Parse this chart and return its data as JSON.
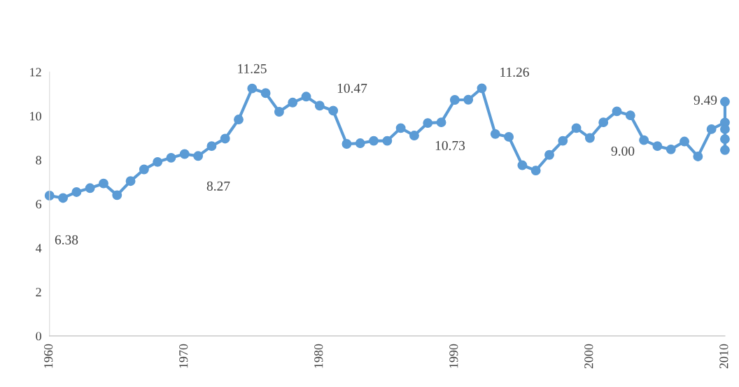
{
  "chart_data": {
    "type": "line",
    "x": [
      1960,
      1961,
      1962,
      1963,
      1964,
      1965,
      1966,
      1967,
      1968,
      1969,
      1970,
      1971,
      1972,
      1973,
      1974,
      1975,
      1976,
      1977,
      1978,
      1979,
      1980,
      1981,
      1982,
      1983,
      1984,
      1985,
      1986,
      1987,
      1988,
      1989,
      1990,
      1991,
      1992,
      1993,
      1994,
      1995,
      1996,
      1997,
      1998,
      1999,
      2000,
      2001,
      2002,
      2003,
      2004,
      2005,
      2006,
      2007,
      2008,
      2009,
      2010,
      2010,
      2010,
      2010,
      2010
    ],
    "series": [
      {
        "color": "#5b9bd5",
        "values": [
          6.38,
          6.27,
          6.54,
          6.72,
          6.93,
          6.4,
          7.04,
          7.57,
          7.91,
          8.1,
          8.27,
          8.18,
          8.63,
          8.97,
          9.84,
          11.25,
          11.04,
          10.19,
          10.61,
          10.88,
          10.47,
          10.24,
          8.73,
          8.76,
          8.87,
          8.87,
          9.45,
          9.11,
          9.68,
          9.71,
          10.73,
          10.74,
          11.26,
          9.18,
          9.05,
          7.76,
          7.52,
          8.23,
          8.87,
          9.45,
          9.0,
          9.71,
          10.21,
          10.03,
          8.9,
          8.63,
          8.48,
          8.84,
          8.16,
          9.4,
          9.7,
          10.65,
          9.4,
          8.95,
          8.45
        ]
      }
    ],
    "annotations": [
      "6.38",
      "8.27",
      "11.25",
      "10.47",
      "10.73",
      "11.26",
      "9.00",
      "9.49"
    ],
    "xlim": [
      1960,
      2010
    ],
    "xticks": [
      1960,
      1970,
      1980,
      1990,
      2000,
      2010
    ],
    "ylim": [
      0,
      12
    ],
    "yticks": [
      0,
      2,
      4,
      6,
      8,
      10,
      12
    ],
    "marker": "circle",
    "line_style": "solid",
    "grid": false,
    "legend": false
  }
}
